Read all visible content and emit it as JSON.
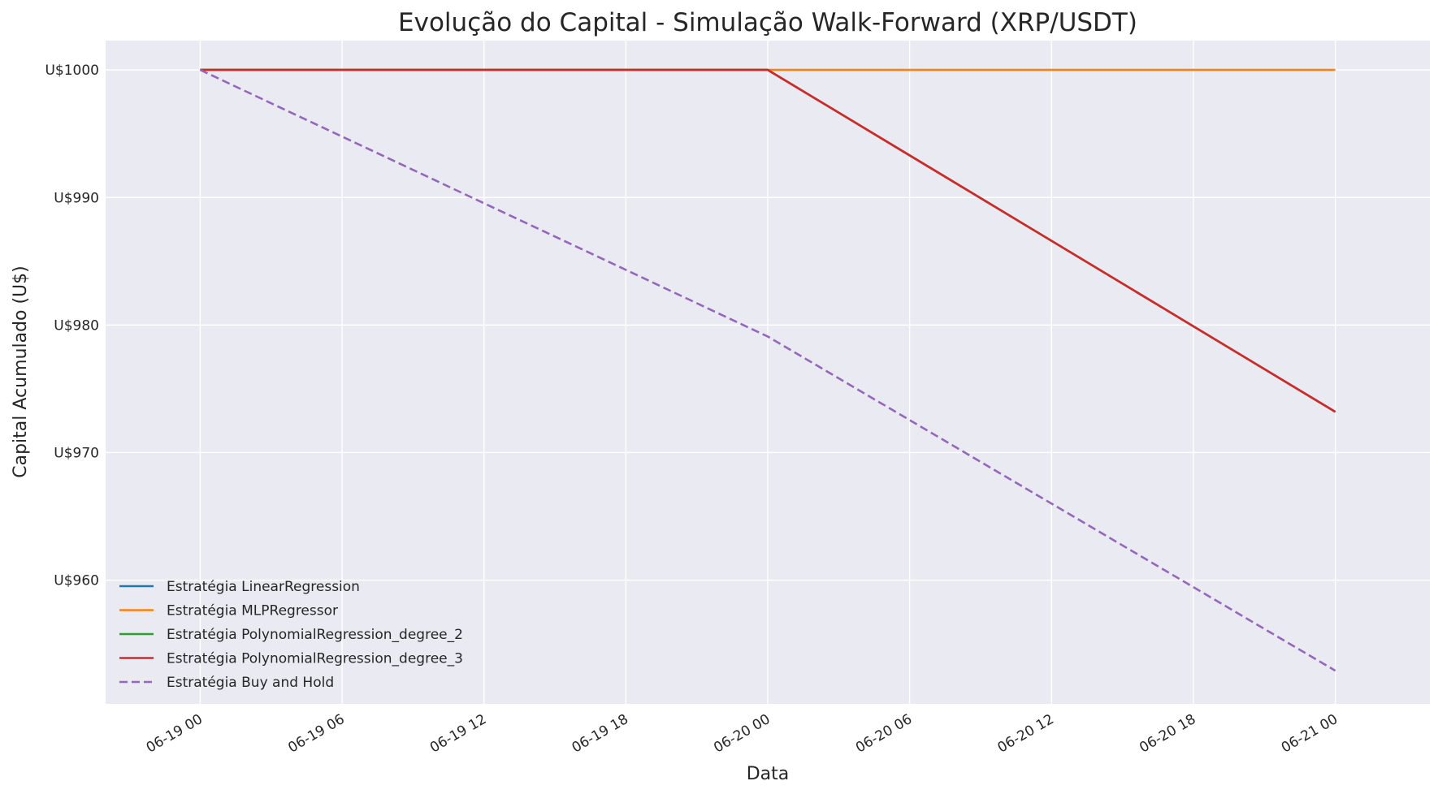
{
  "chart_data": {
    "type": "line",
    "title": "Evolução do Capital - Simulação Walk-Forward (XRP/USDT)",
    "xlabel": "Data",
    "ylabel": "Capital Acumulado (U$)",
    "x": [
      "06-19 00",
      "06-20 00",
      "06-21 00"
    ],
    "x_ticks": [
      "06-19 00",
      "06-19 06",
      "06-19 12",
      "06-19 18",
      "06-20 00",
      "06-20 06",
      "06-20 12",
      "06-20 18",
      "06-21 00"
    ],
    "y_ticks": [
      {
        "value": 960,
        "label": "U$960"
      },
      {
        "value": 970,
        "label": "U$970"
      },
      {
        "value": 980,
        "label": "U$980"
      },
      {
        "value": 990,
        "label": "U$990"
      },
      {
        "value": 1000,
        "label": "U$1000"
      }
    ],
    "xlim_hours": [
      -4,
      52
    ],
    "ylim": [
      950.3,
      1002.3
    ],
    "grid": true,
    "legend_position": "lower-left",
    "series": [
      {
        "name": "Estratégia LinearRegression",
        "values": [
          1000,
          1000,
          973.2
        ],
        "color": "#1f77b4",
        "dash": false
      },
      {
        "name": "Estratégia MLPRegressor",
        "values": [
          1000,
          1000,
          1000
        ],
        "color": "#ff7f0e",
        "dash": false
      },
      {
        "name": "Estratégia PolynomialRegression_degree_2",
        "values": [
          1000,
          1000,
          973.2
        ],
        "color": "#2ca02c",
        "dash": false
      },
      {
        "name": "Estratégia PolynomialRegression_degree_3",
        "values": [
          1000,
          1000,
          973.2
        ],
        "color": "#d62728",
        "dash": false
      },
      {
        "name": "Estratégia Buy and Hold",
        "values": [
          1000,
          979.1,
          952.9
        ],
        "color": "#9467bd",
        "dash": true
      }
    ]
  }
}
